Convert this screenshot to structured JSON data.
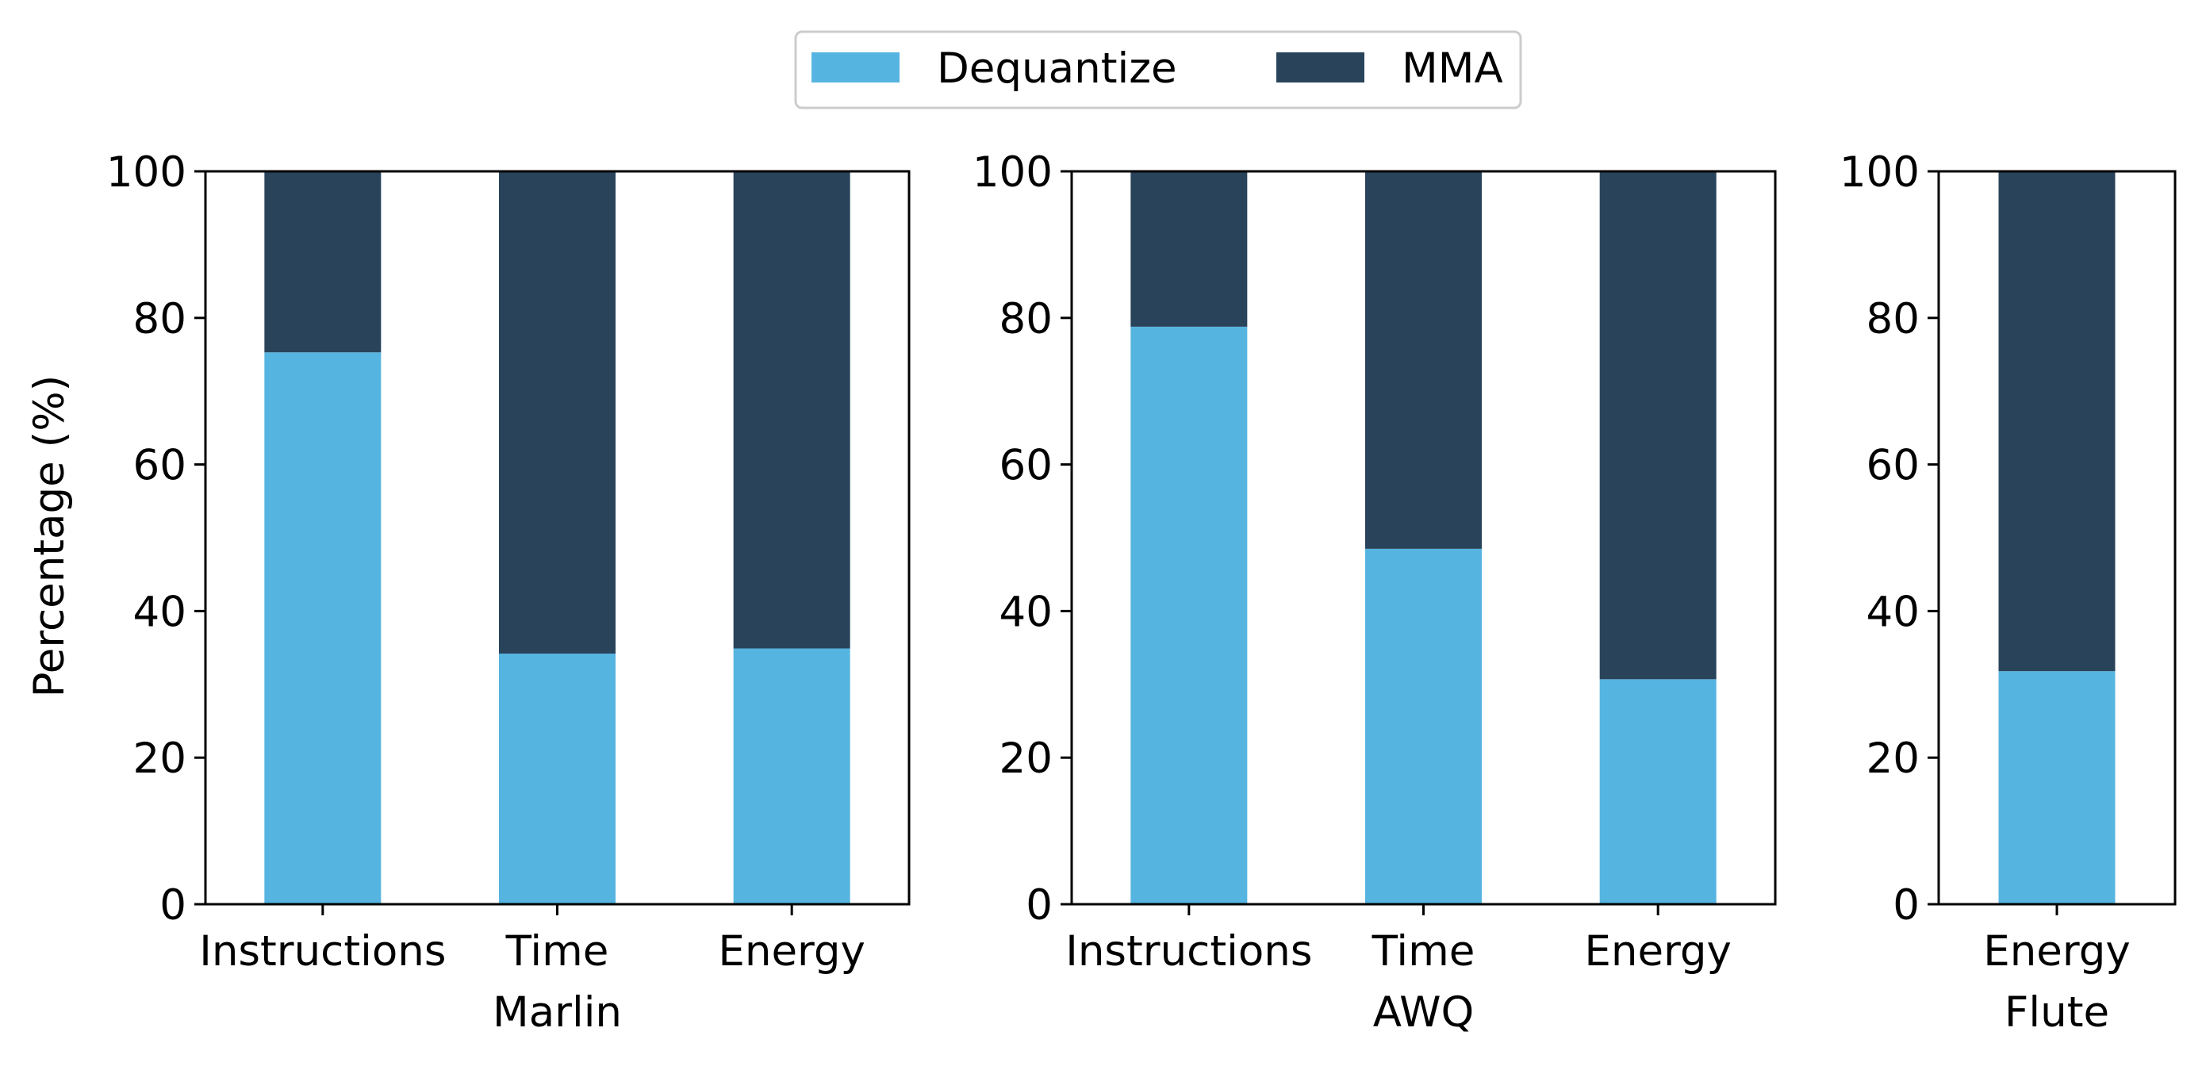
{
  "chart_data": {
    "type": "bar",
    "stacked": true,
    "ylabel": "Percentage (%)",
    "ylim": [
      0,
      100
    ],
    "yticks": [
      0,
      20,
      40,
      60,
      80,
      100
    ],
    "legend": {
      "placement": "top-center",
      "entries": [
        {
          "name": "Dequantize",
          "color": "#56B4E0"
        },
        {
          "name": "MMA",
          "color": "#29435A"
        }
      ]
    },
    "panels": [
      {
        "xlabel": "Marlin",
        "categories": [
          "Instructions",
          "Time",
          "Energy"
        ],
        "series": [
          {
            "name": "Dequantize",
            "values": [
              75.3,
              34.2,
              34.9
            ]
          },
          {
            "name": "MMA",
            "values": [
              24.7,
              65.8,
              65.1
            ]
          }
        ]
      },
      {
        "xlabel": "AWQ",
        "categories": [
          "Instructions",
          "Time",
          "Energy"
        ],
        "series": [
          {
            "name": "Dequantize",
            "values": [
              78.8,
              48.5,
              30.7
            ]
          },
          {
            "name": "MMA",
            "values": [
              21.2,
              51.5,
              69.3
            ]
          }
        ]
      },
      {
        "xlabel": "Flute",
        "categories": [
          "Energy"
        ],
        "series": [
          {
            "name": "Dequantize",
            "values": [
              31.8
            ]
          },
          {
            "name": "MMA",
            "values": [
              68.2
            ]
          }
        ]
      }
    ]
  }
}
